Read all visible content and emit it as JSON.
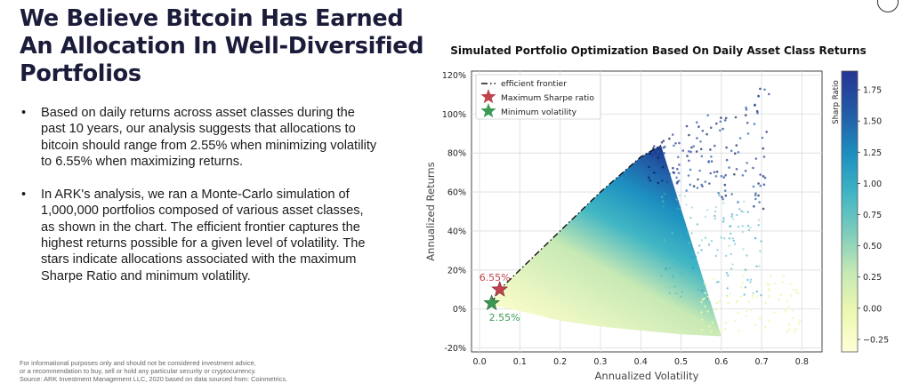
{
  "heading": {
    "line1": "We Believe Bitcoin Has Earned",
    "line2": "An Allocation In Well-Diversified",
    "line3": "Portfolios"
  },
  "bullets": [
    "Based on daily returns across asset classes during the past 10 years, our analysis suggests that allocations to bitcoin should range from 2.55% when minimizing volatility to 6.55% when maximizing returns.",
    "In ARK's analysis, we ran a Monte-Carlo simulation of 1,000,000 portfolios composed of various asset classes, as shown in the chart. The efficient frontier captures the highest returns possible for a given level of volatility. The stars indicate allocations associated with the maximum Sharpe Ratio and minimum volatility."
  ],
  "footer": {
    "line1": "For informational purposes only and should not be considered investment advice,",
    "line2": "or a recommendation to buy, sell or hold any particular security or cryptocurrency.",
    "line3": "Source: ARK Investment Management LLC, 2020 based on data sourced from: Coinmetrics."
  },
  "chart_data": {
    "type": "scatter",
    "title": "Simulated Portfolio Optimization Based On Daily Asset Class Returns",
    "xlabel": "Annualized Volatility",
    "ylabel": "Annualized Returns",
    "xlim": [
      -0.02,
      0.85
    ],
    "ylim": [
      -0.22,
      1.22
    ],
    "x_ticks": [
      0.0,
      0.1,
      0.2,
      0.3,
      0.4,
      0.5,
      0.6,
      0.7,
      0.8
    ],
    "x_tick_labels": [
      "0.0",
      "0.1",
      "0.2",
      "0.3",
      "0.4",
      "0.5",
      "0.6",
      "0.7",
      "0.8"
    ],
    "y_ticks": [
      -0.2,
      0.0,
      0.2,
      0.4,
      0.6,
      0.8,
      1.0,
      1.2
    ],
    "y_tick_labels": [
      "-20%",
      "0%",
      "20%",
      "40%",
      "60%",
      "80%",
      "100%",
      "120%"
    ],
    "grid": true,
    "legend_position": "top-left",
    "legend": [
      {
        "label": "efficient frontier",
        "marker": "dash-dot-line",
        "color": "#222222"
      },
      {
        "label": "Maximum Sharpe ratio",
        "marker": "star",
        "color": "#c0434d"
      },
      {
        "label": "Minimum volatility",
        "marker": "star",
        "color": "#3a9a55"
      }
    ],
    "colorbar": {
      "label": "Sharp Ratio",
      "min": -0.35,
      "max": 1.9,
      "ticks": [
        -0.25,
        0.0,
        0.25,
        0.5,
        0.75,
        1.0,
        1.25,
        1.5,
        1.75
      ],
      "tick_labels": [
        "−0.25",
        "0.00",
        "0.25",
        "0.50",
        "0.75",
        "1.00",
        "1.25",
        "1.50",
        "1.75"
      ],
      "colors": [
        "#ffffd9",
        "#c7e9b4",
        "#7fcdbb",
        "#41b6c4",
        "#1d91c0",
        "#225ea8",
        "#253494",
        "#081d58"
      ]
    },
    "scatter_region": {
      "description_points": "simulated portfolios",
      "frontier": [
        [
          0.03,
          0.03
        ],
        [
          0.05,
          0.1
        ],
        [
          0.1,
          0.2
        ],
        [
          0.2,
          0.4
        ],
        [
          0.3,
          0.6
        ],
        [
          0.4,
          0.78
        ],
        [
          0.45,
          0.84
        ]
      ],
      "lower_edge": [
        [
          0.03,
          0.02
        ],
        [
          0.1,
          -0.01
        ],
        [
          0.2,
          -0.06
        ],
        [
          0.3,
          -0.09
        ],
        [
          0.4,
          -0.11
        ],
        [
          0.5,
          -0.13
        ],
        [
          0.6,
          -0.14
        ]
      ],
      "right_tail": [
        [
          0.45,
          0.84
        ],
        [
          0.5,
          0.92
        ],
        [
          0.55,
          0.98
        ],
        [
          0.6,
          1.02
        ],
        [
          0.65,
          1.09
        ],
        [
          0.71,
          1.16
        ]
      ]
    },
    "max_sharpe": {
      "x": 0.05,
      "y": 0.1,
      "label": "6.55%",
      "color": "#c0434d"
    },
    "min_volatility": {
      "x": 0.03,
      "y": 0.03,
      "label": "2.55%",
      "color": "#3a9a55"
    }
  }
}
